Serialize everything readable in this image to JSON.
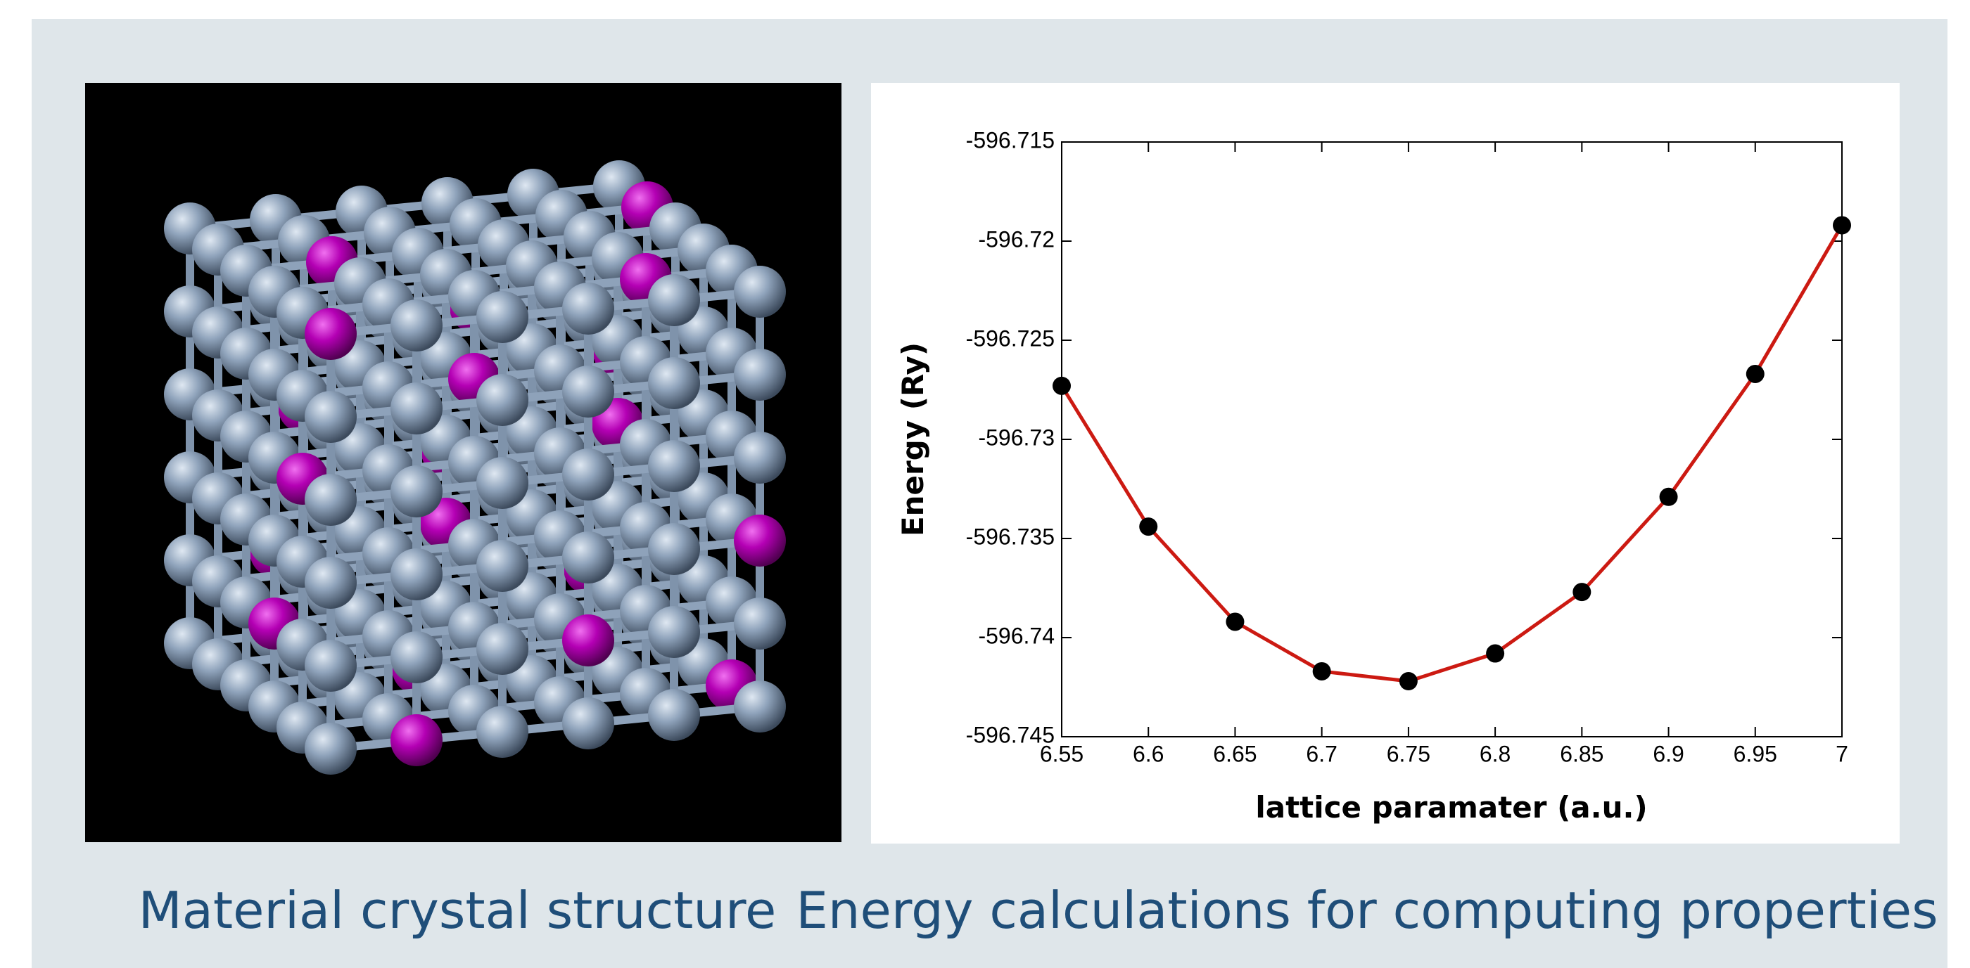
{
  "captions": [
    "Material crystal structure",
    "Energy calculations for computing properties"
  ],
  "chart_data": {
    "type": "line",
    "xlabel": "lattice paramater (a.u.)",
    "ylabel": "Energy (Ry)",
    "x": [
      6.55,
      6.6,
      6.65,
      6.7,
      6.75,
      6.8,
      6.85,
      6.9,
      6.95,
      7
    ],
    "series": [
      {
        "color": "#cc1a12",
        "marker_color": "#000000",
        "values": [
          -596.7273,
          -596.7344,
          -596.7392,
          -596.7417,
          -596.7422,
          -596.7408,
          -596.7377,
          -596.7329,
          -596.7267,
          -596.7192
        ]
      }
    ],
    "xlim": [
      6.55,
      7
    ],
    "xticks": [
      6.55,
      6.6,
      6.65,
      6.7,
      6.75,
      6.8,
      6.85,
      6.9,
      6.95,
      7
    ],
    "ylim": [
      -596.745,
      -596.715
    ],
    "yticks": [
      -596.745,
      -596.74,
      -596.735,
      -596.73,
      -596.725,
      -596.72,
      -596.715
    ]
  }
}
